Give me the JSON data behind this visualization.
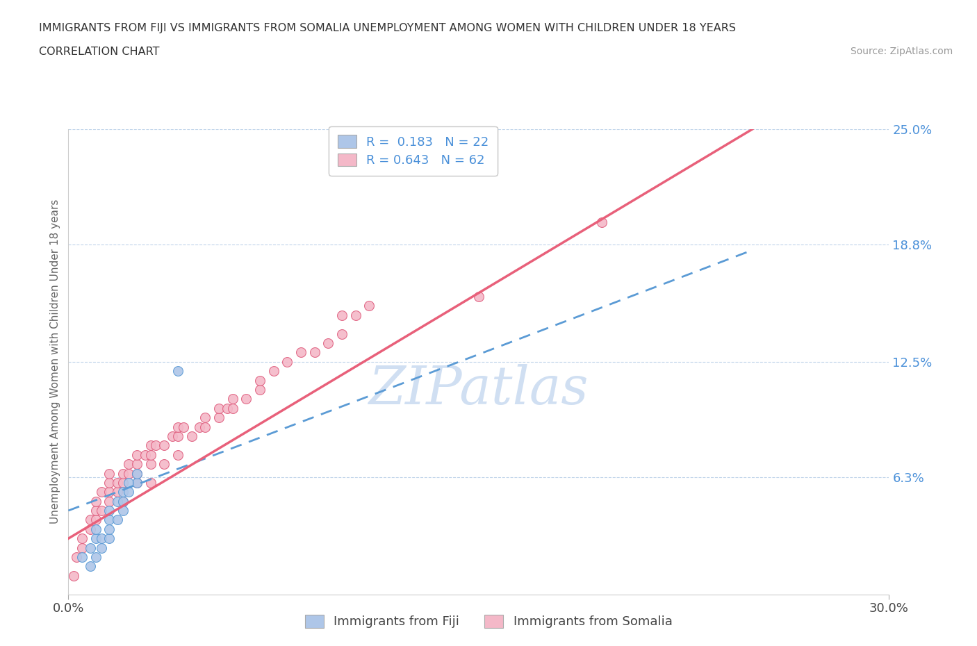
{
  "title_line1": "IMMIGRANTS FROM FIJI VS IMMIGRANTS FROM SOMALIA UNEMPLOYMENT AMONG WOMEN WITH CHILDREN UNDER 18 YEARS",
  "title_line2": "CORRELATION CHART",
  "source": "Source: ZipAtlas.com",
  "ylabel": "Unemployment Among Women with Children Under 18 years",
  "xlim": [
    0.0,
    0.3
  ],
  "ylim": [
    0.0,
    0.25
  ],
  "ytick_values": [
    0.0,
    0.063,
    0.125,
    0.188,
    0.25
  ],
  "ytick_labels": [
    "",
    "6.3%",
    "12.5%",
    "18.8%",
    "25.0%"
  ],
  "fiji_color": "#aec6e8",
  "fiji_edge": "#5b9bd5",
  "somalia_color": "#f4b8c8",
  "somalia_edge": "#e06080",
  "trendline_fiji_color": "#5b9bd5",
  "trendline_somalia_color": "#e8607a",
  "legend_fiji_R": "0.183",
  "legend_fiji_N": "22",
  "legend_somalia_R": "0.643",
  "legend_somalia_N": "62",
  "watermark": "ZIPatlas",
  "watermark_color": "#c8daf0",
  "fiji_x": [
    0.005,
    0.008,
    0.01,
    0.01,
    0.012,
    0.015,
    0.015,
    0.018,
    0.02,
    0.02,
    0.022,
    0.025,
    0.008,
    0.01,
    0.012,
    0.015,
    0.015,
    0.018,
    0.02,
    0.022,
    0.025,
    0.04
  ],
  "fiji_y": [
    0.02,
    0.025,
    0.03,
    0.035,
    0.03,
    0.04,
    0.045,
    0.05,
    0.05,
    0.055,
    0.055,
    0.06,
    0.015,
    0.02,
    0.025,
    0.03,
    0.035,
    0.04,
    0.045,
    0.06,
    0.065,
    0.12
  ],
  "somalia_x": [
    0.002,
    0.003,
    0.005,
    0.005,
    0.008,
    0.008,
    0.01,
    0.01,
    0.01,
    0.012,
    0.012,
    0.015,
    0.015,
    0.015,
    0.015,
    0.018,
    0.018,
    0.02,
    0.02,
    0.02,
    0.022,
    0.022,
    0.025,
    0.025,
    0.025,
    0.025,
    0.028,
    0.03,
    0.03,
    0.03,
    0.03,
    0.032,
    0.035,
    0.035,
    0.038,
    0.04,
    0.04,
    0.04,
    0.042,
    0.045,
    0.048,
    0.05,
    0.05,
    0.055,
    0.055,
    0.058,
    0.06,
    0.06,
    0.065,
    0.07,
    0.07,
    0.075,
    0.08,
    0.085,
    0.09,
    0.095,
    0.1,
    0.1,
    0.105,
    0.11,
    0.15,
    0.195
  ],
  "somalia_y": [
    0.01,
    0.02,
    0.025,
    0.03,
    0.035,
    0.04,
    0.04,
    0.045,
    0.05,
    0.045,
    0.055,
    0.05,
    0.055,
    0.06,
    0.065,
    0.055,
    0.06,
    0.05,
    0.06,
    0.065,
    0.065,
    0.07,
    0.06,
    0.065,
    0.07,
    0.075,
    0.075,
    0.06,
    0.07,
    0.075,
    0.08,
    0.08,
    0.07,
    0.08,
    0.085,
    0.075,
    0.085,
    0.09,
    0.09,
    0.085,
    0.09,
    0.09,
    0.095,
    0.095,
    0.1,
    0.1,
    0.1,
    0.105,
    0.105,
    0.11,
    0.115,
    0.12,
    0.125,
    0.13,
    0.13,
    0.135,
    0.14,
    0.15,
    0.15,
    0.155,
    0.16,
    0.2
  ],
  "fiji_trend_x": [
    0.0,
    0.25
  ],
  "fiji_trend_y": [
    0.045,
    0.185
  ],
  "somalia_trend_x": [
    0.0,
    0.25
  ],
  "somalia_trend_y": [
    0.03,
    0.25
  ]
}
